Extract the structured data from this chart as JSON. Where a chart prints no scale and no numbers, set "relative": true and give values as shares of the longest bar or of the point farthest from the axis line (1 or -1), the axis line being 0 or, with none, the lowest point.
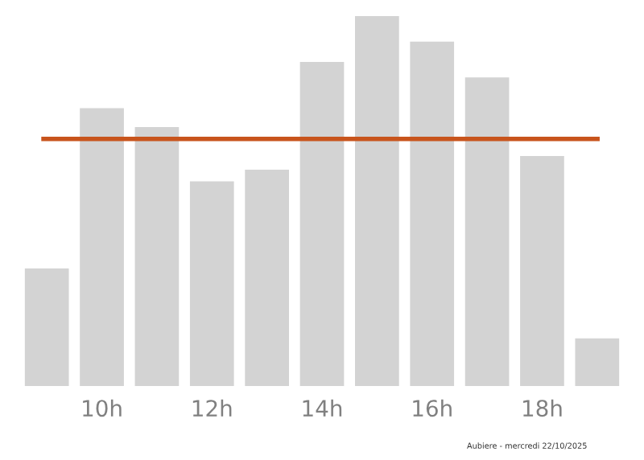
{
  "chart_data": {
    "type": "bar",
    "relative": true,
    "categories": [
      null,
      "10h",
      null,
      "12h",
      null,
      "14h",
      null,
      "16h",
      null,
      "18h",
      null
    ],
    "values": [
      0.318,
      0.751,
      0.7,
      0.553,
      0.585,
      0.876,
      1,
      0.931,
      0.834,
      0.622,
      0.129
    ],
    "color": "#d3d3d3",
    "ref_lines": [
      {
        "axis": "y",
        "value": 0.668,
        "color": "#c8541c"
      }
    ],
    "annotations": [
      "Aubiere - mercredi 22/10/2025"
    ],
    "grid": false,
    "legend": false
  }
}
